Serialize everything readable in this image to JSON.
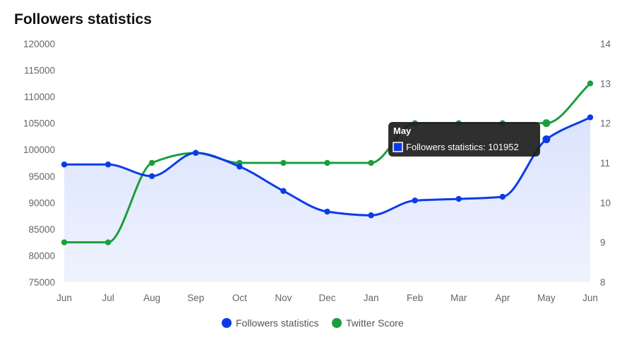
{
  "chart_data": {
    "type": "line",
    "title": "Followers statistics",
    "categories": [
      "Jun",
      "Jul",
      "Aug",
      "Sep",
      "Oct",
      "Nov",
      "Dec",
      "Jan",
      "Feb",
      "Mar",
      "Apr",
      "May",
      "Jun"
    ],
    "series": [
      {
        "name": "Followers statistics",
        "axis": "left",
        "color": "#0b3be8",
        "area_fill": "#dbe4fd",
        "values": [
          97200,
          97200,
          95000,
          99400,
          96800,
          92200,
          88300,
          87600,
          90400,
          90700,
          91100,
          101952,
          106100
        ]
      },
      {
        "name": "Twitter Score",
        "axis": "right",
        "color": "#1a9e3c",
        "values": [
          9,
          9,
          11,
          11.25,
          11,
          11,
          11,
          11,
          12,
          12,
          12,
          12,
          13
        ]
      }
    ],
    "y_left": {
      "min": 75000,
      "max": 120000,
      "step": 5000
    },
    "y_right": {
      "min": 8,
      "max": 14,
      "step": 1
    },
    "grid": false,
    "legend": "bottom-center",
    "tooltip": {
      "category": "May",
      "series": "Followers statistics",
      "text": "Followers statistics: 101952"
    }
  }
}
